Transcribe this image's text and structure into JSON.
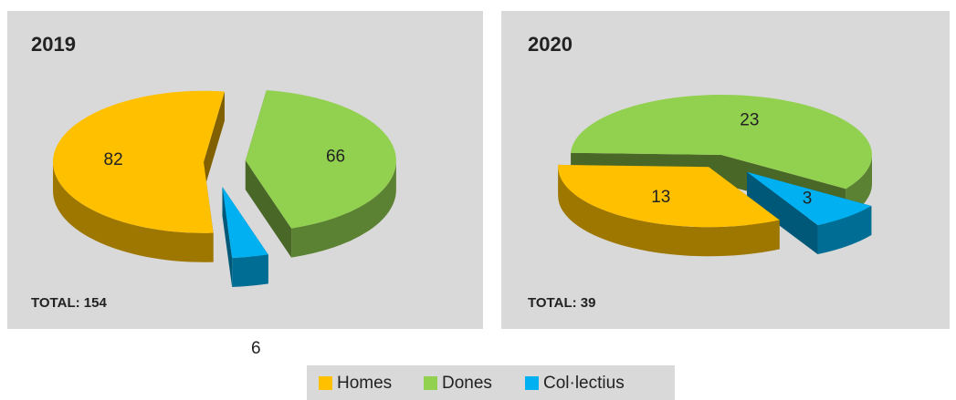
{
  "chart_data": [
    {
      "type": "pie3d",
      "title": "2019",
      "categories": [
        "Homes",
        "Dones",
        "Col·lectius"
      ],
      "values": [
        82,
        66,
        6
      ],
      "colors": [
        "#ffc000",
        "#92d050",
        "#00b0f0"
      ],
      "annotation": "TOTAL: 154"
    },
    {
      "type": "pie3d",
      "title": "2020",
      "categories": [
        "Homes",
        "Dones",
        "Col·lectius"
      ],
      "values": [
        13,
        23,
        3
      ],
      "colors": [
        "#ffc000",
        "#92d050",
        "#00b0f0"
      ],
      "annotation": "TOTAL: 39"
    }
  ]
}
